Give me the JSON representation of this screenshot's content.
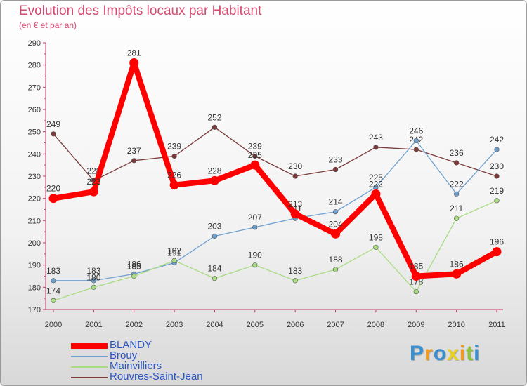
{
  "chart_data": {
    "type": "line",
    "title": "Evolution des Impôts locaux par Habitant",
    "subtitle": "(en € et par an)",
    "xlabel": "",
    "ylabel": "",
    "categories": [
      "2000",
      "2001",
      "2002",
      "2003",
      "2004",
      "2005",
      "2006",
      "2007",
      "2008",
      "2009",
      "2010",
      "2011"
    ],
    "ylim": [
      170,
      290
    ],
    "yticks": [
      170,
      180,
      190,
      200,
      210,
      220,
      230,
      240,
      250,
      260,
      270,
      280,
      290
    ],
    "grid": false,
    "legend_position": "bottom-left",
    "series": [
      {
        "name": "BLANDY",
        "color": "#ff0000",
        "values": [
          220,
          223,
          281,
          226,
          228,
          235,
          213,
          204,
          222,
          185,
          186,
          196
        ]
      },
      {
        "name": "Brouy",
        "color": "#6ea0d0",
        "values": [
          183,
          183,
          186,
          191,
          203,
          207,
          211,
          214,
          225,
          246,
          222,
          242
        ]
      },
      {
        "name": "Mainvilliers",
        "color": "#a8dc80",
        "values": [
          174,
          180,
          185,
          192,
          184,
          190,
          183,
          188,
          198,
          178,
          211,
          219
        ]
      },
      {
        "name": "Rouvres-Saint-Jean",
        "color": "#7a3a3a",
        "values": [
          249,
          228,
          237,
          239,
          252,
          239,
          230,
          233,
          243,
          242,
          236,
          230
        ]
      }
    ]
  },
  "logo": {
    "letters": [
      "P",
      "r",
      "o",
      "x",
      "i",
      "t",
      "i"
    ],
    "colors": [
      "#3a8fd0",
      "#f29a1e",
      "#3a8fd0",
      "#e8d020",
      "#f29a1e",
      "#8cc43a",
      "#3a8fd0"
    ]
  }
}
